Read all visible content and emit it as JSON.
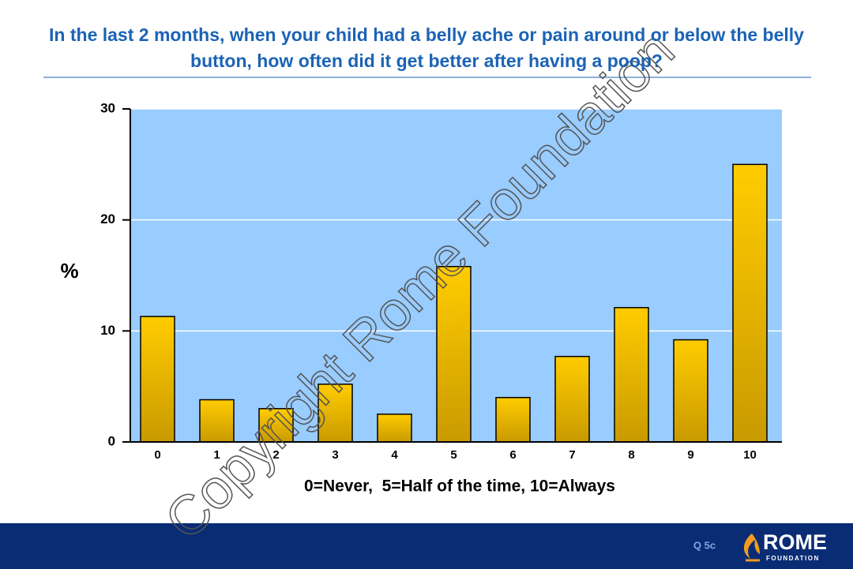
{
  "chart_data": {
    "type": "bar",
    "title": "In the last 2 months, when your child had a belly ache or pain around or below the belly button, how often did it get better after having a poop?",
    "x_label": "0=Never,  5=Half of the time, 10=Always",
    "y_label": "%",
    "categories": [
      "0",
      "1",
      "2",
      "3",
      "4",
      "5",
      "6",
      "7",
      "8",
      "9",
      "10"
    ],
    "values": [
      11.3,
      3.8,
      3.0,
      5.2,
      2.5,
      15.8,
      4.0,
      7.7,
      12.1,
      9.2,
      25.0
    ],
    "color": "#ffcc00",
    "ylim": [
      0,
      30
    ],
    "yticks": [
      0,
      10,
      20,
      30
    ],
    "grid": true
  },
  "watermark": "Copyright Rome Foundation",
  "footer": {
    "question": "Q 5c",
    "logo": "ROME",
    "logo_sub": "FOUNDATION"
  }
}
